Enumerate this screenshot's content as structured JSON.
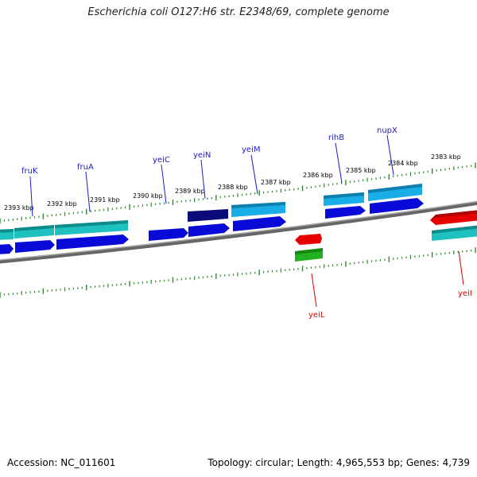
{
  "title": "Escherichia coli O127:H6 str. E2348/69, complete genome",
  "footer": {
    "accession": "Accession: NC_011601",
    "summary": "Topology: circular; Length: 4,965,553 bp; Genes: 4,739"
  },
  "colors": {
    "backbone": "#7a7a7a",
    "tick": "#2e8b2e",
    "label_plus": "#1a1acc",
    "label_minus": "#dd0000",
    "cds_plus": "#0a0ad8",
    "cds_plus_dark": "#0a0a78",
    "gene_plus_teal": "#1fc0c0",
    "gene_plus_sky": "#19aee8",
    "cds_minus": "#e80000",
    "gene_minus_green": "#23b023",
    "gene_minus_teal": "#1fc0c0"
  },
  "scale": {
    "unit": "kbp",
    "ticks": [
      {
        "kbp": 2393,
        "label": "2393 kbp"
      },
      {
        "kbp": 2392,
        "label": "2392 kbp"
      },
      {
        "kbp": 2391,
        "label": "2391 kbp"
      },
      {
        "kbp": 2390,
        "label": "2390 kbp"
      },
      {
        "kbp": 2389,
        "label": "2389 kbp"
      },
      {
        "kbp": 2388,
        "label": "2388 kbp"
      },
      {
        "kbp": 2387,
        "label": "2387 kbp"
      },
      {
        "kbp": 2386,
        "label": "2386 kbp"
      },
      {
        "kbp": 2385,
        "label": "2385 kbp"
      },
      {
        "kbp": 2384,
        "label": "2384 kbp"
      },
      {
        "kbp": 2383,
        "label": "2383 kbp"
      }
    ]
  },
  "genes_plus": [
    {
      "name": "fruK"
    },
    {
      "name": "fruA"
    },
    {
      "name": "yeiC"
    },
    {
      "name": "yeiN"
    },
    {
      "name": "yeiM"
    },
    {
      "name": "rihB"
    },
    {
      "name": "nupX"
    }
  ],
  "genes_minus": [
    {
      "name": "yeiL"
    },
    {
      "name": "yeiI"
    }
  ]
}
